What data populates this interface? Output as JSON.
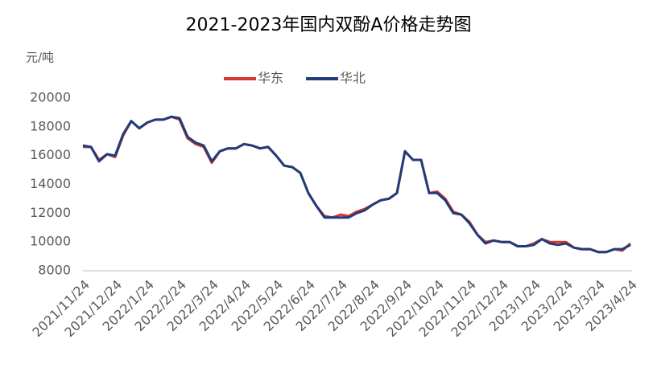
{
  "chart_data": {
    "type": "line",
    "title": "2021-2023年国内双酚A价格走势图",
    "y_label": "元/吨",
    "categories": [
      "2021/11/24",
      null,
      null,
      null,
      "2021/12/24",
      null,
      null,
      null,
      "2022/1/24",
      null,
      null,
      null,
      "2022/2/24",
      null,
      null,
      null,
      "2022/3/24",
      null,
      null,
      null,
      "2022/4/24",
      null,
      null,
      null,
      "2022/5/24",
      null,
      null,
      null,
      "2022/6/24",
      null,
      null,
      null,
      "2022/7/24",
      null,
      null,
      null,
      "2022/8/24",
      null,
      null,
      null,
      "2022/9/24",
      null,
      null,
      null,
      "2022/10/24",
      null,
      null,
      null,
      "2022/11/24",
      null,
      null,
      null,
      "2022/12/24",
      null,
      null,
      null,
      "2023/1/24",
      null,
      null,
      null,
      "2023/2/24",
      null,
      null,
      null,
      "2023/3/24",
      null,
      null,
      null,
      "2023/4/24"
    ],
    "series": [
      {
        "name": "华东",
        "color": "#d9352a",
        "values": [
          16600,
          16600,
          15700,
          16100,
          15900,
          17400,
          18400,
          17900,
          18300,
          18500,
          18500,
          18700,
          18500,
          17200,
          16800,
          16600,
          15500,
          16300,
          16500,
          16500,
          16800,
          16700,
          16500,
          16600,
          16000,
          15300,
          15200,
          14800,
          13400,
          12500,
          11800,
          11700,
          11900,
          11800,
          12100,
          12300,
          12600,
          12900,
          13000,
          13400,
          16300,
          15700,
          15700,
          13400,
          13500,
          13000,
          12100,
          11900,
          11400,
          10500,
          10000,
          10100,
          10000,
          10000,
          9700,
          9700,
          9900,
          10200,
          10000,
          10000,
          10000,
          9600,
          9500,
          9500,
          9300,
          9300,
          9500,
          9400,
          9900
        ]
      },
      {
        "name": "华北",
        "color": "#1f3d7a",
        "values": [
          16700,
          16600,
          15600,
          16100,
          16000,
          17500,
          18400,
          17900,
          18300,
          18500,
          18500,
          18700,
          18600,
          17300,
          16900,
          16700,
          15600,
          16300,
          16500,
          16500,
          16800,
          16700,
          16500,
          16600,
          16000,
          15300,
          15200,
          14800,
          13400,
          12500,
          11700,
          11700,
          11700,
          11700,
          12000,
          12200,
          12600,
          12900,
          13000,
          13400,
          16300,
          15700,
          15700,
          13400,
          13400,
          12900,
          12000,
          11900,
          11300,
          10500,
          9900,
          10100,
          10000,
          10000,
          9700,
          9700,
          9800,
          10200,
          9900,
          9800,
          9900,
          9600,
          9500,
          9500,
          9300,
          9300,
          9500,
          9500,
          9800
        ]
      }
    ],
    "ylim": [
      8000,
      20000
    ],
    "yticks": [
      8000,
      10000,
      12000,
      14000,
      16000,
      18000,
      20000
    ],
    "legend": "top",
    "grid": false
  }
}
